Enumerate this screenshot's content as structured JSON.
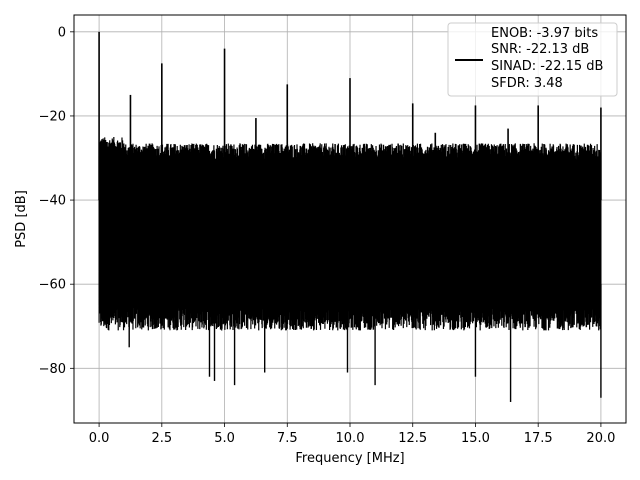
{
  "chart_data": {
    "type": "line",
    "title": "",
    "xlabel": "Frequency [MHz]",
    "ylabel": "PSD [dB]",
    "xlim": [
      -1.0,
      21.0
    ],
    "ylim": [
      -93,
      4
    ],
    "xticks": [
      0.0,
      2.5,
      5.0,
      7.5,
      10.0,
      12.5,
      15.0,
      17.5,
      20.0
    ],
    "xtick_labels": [
      "0.0",
      "2.5",
      "5.0",
      "7.5",
      "10.0",
      "12.5",
      "15.0",
      "17.5",
      "20.0"
    ],
    "yticks": [
      0,
      -20,
      -40,
      -60,
      -80
    ],
    "ytick_labels": [
      "0",
      "−20",
      "−40",
      "−60",
      "−80"
    ],
    "grid": true,
    "line_color": "#000000",
    "noise_band": {
      "x_range": [
        0.0,
        20.0
      ],
      "upper_db": -27,
      "lower_db": -68
    },
    "peaks": [
      {
        "x": 0.0,
        "y": 0
      },
      {
        "x": 1.25,
        "y": -15
      },
      {
        "x": 2.5,
        "y": -7.5
      },
      {
        "x": 5.0,
        "y": -4
      },
      {
        "x": 6.25,
        "y": -20.5
      },
      {
        "x": 7.5,
        "y": -12.5
      },
      {
        "x": 10.0,
        "y": -11
      },
      {
        "x": 12.5,
        "y": -17
      },
      {
        "x": 13.4,
        "y": -24
      },
      {
        "x": 15.0,
        "y": -17.5
      },
      {
        "x": 16.3,
        "y": -23
      },
      {
        "x": 17.5,
        "y": -17.5
      },
      {
        "x": 20.0,
        "y": -18
      }
    ],
    "dips": [
      {
        "x": 1.2,
        "y": -75
      },
      {
        "x": 4.4,
        "y": -82
      },
      {
        "x": 4.6,
        "y": -83
      },
      {
        "x": 5.4,
        "y": -84
      },
      {
        "x": 6.6,
        "y": -81
      },
      {
        "x": 9.9,
        "y": -81
      },
      {
        "x": 11.0,
        "y": -84
      },
      {
        "x": 15.0,
        "y": -82
      },
      {
        "x": 16.4,
        "y": -88
      },
      {
        "x": 20.0,
        "y": -87
      }
    ],
    "legend": {
      "position": "top-right",
      "entries": [
        "ENOB: -3.97 bits",
        "SNR: -22.13 dB",
        "SINAD: -22.15 dB",
        "SFDR: 3.48"
      ]
    }
  }
}
